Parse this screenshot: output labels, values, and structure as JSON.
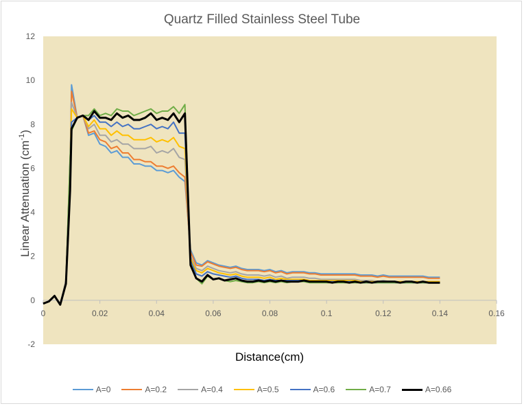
{
  "chart_data": {
    "type": "line",
    "title": "Quartz Filled Stainless Steel Tube",
    "xlabel": "Distance(cm)",
    "ylabel": "Linear Attenuation (cm",
    "ylabel_sup": "-1",
    "ylabel_close": ")",
    "xlim": [
      0,
      0.16
    ],
    "ylim": [
      -2,
      12
    ],
    "x_ticks": [
      0,
      0.02,
      0.04,
      0.06,
      0.08,
      0.1,
      0.12,
      0.14,
      0.16
    ],
    "x_tick_labels": [
      "0",
      "0.02",
      "0.04",
      "0.06",
      "0.08",
      "0.1",
      "0.12",
      "0.14",
      "0.16"
    ],
    "y_ticks": [
      -2,
      0,
      2,
      4,
      6,
      8,
      10,
      12
    ],
    "y_tick_labels": [
      "-2",
      "0",
      "2",
      "4",
      "6",
      "8",
      "10",
      "12"
    ],
    "plot_background": "#efe4bf",
    "grid": false,
    "legend_position": "bottom",
    "x": [
      0,
      0.002,
      0.004,
      0.006,
      0.008,
      0.0095,
      0.01,
      0.012,
      0.014,
      0.016,
      0.018,
      0.02,
      0.022,
      0.024,
      0.026,
      0.028,
      0.03,
      0.032,
      0.034,
      0.036,
      0.038,
      0.04,
      0.042,
      0.044,
      0.046,
      0.048,
      0.05,
      0.052,
      0.054,
      0.056,
      0.058,
      0.06,
      0.062,
      0.064,
      0.066,
      0.068,
      0.07,
      0.072,
      0.074,
      0.076,
      0.078,
      0.08,
      0.082,
      0.084,
      0.086,
      0.088,
      0.09,
      0.092,
      0.094,
      0.096,
      0.098,
      0.1,
      0.102,
      0.104,
      0.106,
      0.108,
      0.11,
      0.112,
      0.114,
      0.116,
      0.118,
      0.12,
      0.122,
      0.124,
      0.126,
      0.128,
      0.13,
      0.132,
      0.134,
      0.136,
      0.138,
      0.14
    ],
    "series": [
      {
        "name": "A=0",
        "color": "#5b9bd5",
        "width": 2,
        "values": [
          -0.15,
          -0.05,
          0.2,
          -0.2,
          0.9,
          6.0,
          9.8,
          8.3,
          8.4,
          7.5,
          7.6,
          7.1,
          7.0,
          6.7,
          6.8,
          6.5,
          6.5,
          6.2,
          6.2,
          6.1,
          6.1,
          5.9,
          5.9,
          5.8,
          5.9,
          5.6,
          5.4,
          2.3,
          1.7,
          1.6,
          1.8,
          1.7,
          1.6,
          1.55,
          1.5,
          1.55,
          1.45,
          1.4,
          1.4,
          1.4,
          1.35,
          1.4,
          1.3,
          1.35,
          1.25,
          1.3,
          1.3,
          1.3,
          1.25,
          1.25,
          1.2,
          1.2,
          1.2,
          1.2,
          1.2,
          1.2,
          1.2,
          1.15,
          1.15,
          1.15,
          1.1,
          1.15,
          1.1,
          1.1,
          1.1,
          1.1,
          1.1,
          1.1,
          1.1,
          1.05,
          1.05,
          1.05
        ]
      },
      {
        "name": "A=0.2",
        "color": "#ed7d31",
        "width": 2,
        "values": [
          -0.15,
          -0.05,
          0.2,
          -0.2,
          0.85,
          6.0,
          9.5,
          8.3,
          8.4,
          7.6,
          7.7,
          7.3,
          7.2,
          6.9,
          7.0,
          6.7,
          6.7,
          6.4,
          6.4,
          6.3,
          6.3,
          6.1,
          6.1,
          6.0,
          6.1,
          5.8,
          5.6,
          2.2,
          1.6,
          1.55,
          1.75,
          1.65,
          1.55,
          1.5,
          1.45,
          1.5,
          1.4,
          1.35,
          1.35,
          1.35,
          1.3,
          1.35,
          1.25,
          1.3,
          1.2,
          1.25,
          1.25,
          1.25,
          1.2,
          1.2,
          1.15,
          1.15,
          1.15,
          1.15,
          1.15,
          1.15,
          1.15,
          1.1,
          1.1,
          1.1,
          1.05,
          1.1,
          1.05,
          1.05,
          1.05,
          1.05,
          1.05,
          1.05,
          1.05,
          1.0,
          1.0,
          1.0
        ]
      },
      {
        "name": "A=0.4",
        "color": "#a5a5a5",
        "width": 2,
        "values": [
          -0.15,
          -0.05,
          0.2,
          -0.2,
          0.8,
          6.2,
          9.0,
          8.3,
          8.4,
          7.8,
          8.0,
          7.5,
          7.5,
          7.2,
          7.3,
          7.1,
          7.1,
          6.9,
          6.9,
          6.9,
          7.0,
          6.7,
          6.8,
          6.7,
          6.9,
          6.5,
          6.4,
          2.0,
          1.45,
          1.35,
          1.55,
          1.45,
          1.35,
          1.3,
          1.25,
          1.3,
          1.2,
          1.15,
          1.15,
          1.15,
          1.1,
          1.15,
          1.05,
          1.1,
          1.0,
          1.05,
          1.05,
          1.05,
          1.0,
          1.0,
          0.95,
          0.95,
          0.95,
          0.95,
          0.95,
          0.95,
          0.95,
          0.9,
          0.9,
          0.9,
          0.85,
          0.9,
          0.85,
          0.85,
          0.85,
          0.85,
          0.85,
          0.85,
          0.85,
          0.85,
          0.85,
          0.85
        ]
      },
      {
        "name": "A=0.5",
        "color": "#ffc000",
        "width": 2,
        "values": [
          -0.15,
          -0.05,
          0.2,
          -0.2,
          0.8,
          6.3,
          8.7,
          8.3,
          8.4,
          7.9,
          8.2,
          7.8,
          7.8,
          7.5,
          7.7,
          7.5,
          7.5,
          7.3,
          7.3,
          7.3,
          7.4,
          7.2,
          7.3,
          7.2,
          7.4,
          7.0,
          6.9,
          1.9,
          1.35,
          1.25,
          1.45,
          1.35,
          1.25,
          1.2,
          1.15,
          1.2,
          1.1,
          1.05,
          1.05,
          1.05,
          1.0,
          1.05,
          0.95,
          1.0,
          0.95,
          0.95,
          0.95,
          0.95,
          0.9,
          0.9,
          0.9,
          0.9,
          0.9,
          0.9,
          0.9,
          0.9,
          0.9,
          0.85,
          0.85,
          0.85,
          0.85,
          0.85,
          0.85,
          0.85,
          0.85,
          0.85,
          0.85,
          0.85,
          0.85,
          0.85,
          0.85,
          0.85
        ]
      },
      {
        "name": "A=0.6",
        "color": "#4472c4",
        "width": 2,
        "values": [
          -0.15,
          -0.05,
          0.2,
          -0.2,
          0.75,
          6.4,
          8.1,
          8.3,
          8.4,
          8.2,
          8.4,
          8.1,
          8.1,
          7.9,
          8.1,
          7.9,
          8.0,
          7.8,
          7.8,
          7.9,
          8.0,
          7.8,
          7.9,
          7.8,
          8.1,
          7.6,
          7.6,
          1.8,
          1.2,
          1.1,
          1.3,
          1.2,
          1.15,
          1.1,
          1.05,
          1.1,
          1.0,
          0.95,
          0.95,
          0.95,
          0.9,
          0.95,
          0.9,
          0.9,
          0.9,
          0.9,
          0.9,
          0.9,
          0.85,
          0.85,
          0.85,
          0.85,
          0.85,
          0.85,
          0.85,
          0.85,
          0.85,
          0.8,
          0.8,
          0.8,
          0.8,
          0.8,
          0.8,
          0.8,
          0.8,
          0.8,
          0.8,
          0.8,
          0.8,
          0.8,
          0.8,
          0.8
        ]
      },
      {
        "name": "A=0.7",
        "color": "#70ad47",
        "width": 2,
        "values": [
          -0.15,
          -0.05,
          0.2,
          -0.2,
          0.75,
          6.5,
          7.7,
          8.3,
          8.4,
          8.4,
          8.7,
          8.4,
          8.5,
          8.4,
          8.7,
          8.6,
          8.6,
          8.4,
          8.5,
          8.6,
          8.7,
          8.5,
          8.6,
          8.6,
          8.8,
          8.5,
          8.9,
          1.7,
          1.0,
          0.75,
          1.1,
          0.95,
          1.0,
          0.9,
          0.85,
          0.9,
          0.85,
          0.8,
          0.8,
          0.85,
          0.8,
          0.85,
          0.8,
          0.85,
          0.8,
          0.85,
          0.85,
          0.85,
          0.8,
          0.8,
          0.8,
          0.8,
          0.8,
          0.8,
          0.8,
          0.8,
          0.8,
          0.8,
          0.8,
          0.8,
          0.8,
          0.8,
          0.8,
          0.8,
          0.8,
          0.8,
          0.8,
          0.8,
          0.8,
          0.8,
          0.8,
          0.8
        ]
      },
      {
        "name": "A=0.66",
        "color": "#000000",
        "width": 3,
        "values": [
          -0.15,
          -0.05,
          0.2,
          -0.2,
          0.75,
          5.0,
          7.8,
          8.3,
          8.4,
          8.2,
          8.6,
          8.3,
          8.3,
          8.2,
          8.5,
          8.3,
          8.4,
          8.2,
          8.2,
          8.3,
          8.5,
          8.2,
          8.3,
          8.2,
          8.5,
          8.1,
          8.5,
          1.6,
          1.0,
          0.85,
          1.15,
          0.95,
          1.0,
          0.9,
          0.95,
          1.0,
          0.9,
          0.85,
          0.85,
          0.9,
          0.85,
          0.9,
          0.85,
          0.9,
          0.85,
          0.85,
          0.85,
          0.9,
          0.85,
          0.85,
          0.85,
          0.85,
          0.8,
          0.85,
          0.85,
          0.8,
          0.85,
          0.8,
          0.85,
          0.8,
          0.85,
          0.85,
          0.85,
          0.85,
          0.8,
          0.85,
          0.85,
          0.8,
          0.85,
          0.8,
          0.8,
          0.8
        ]
      }
    ]
  }
}
